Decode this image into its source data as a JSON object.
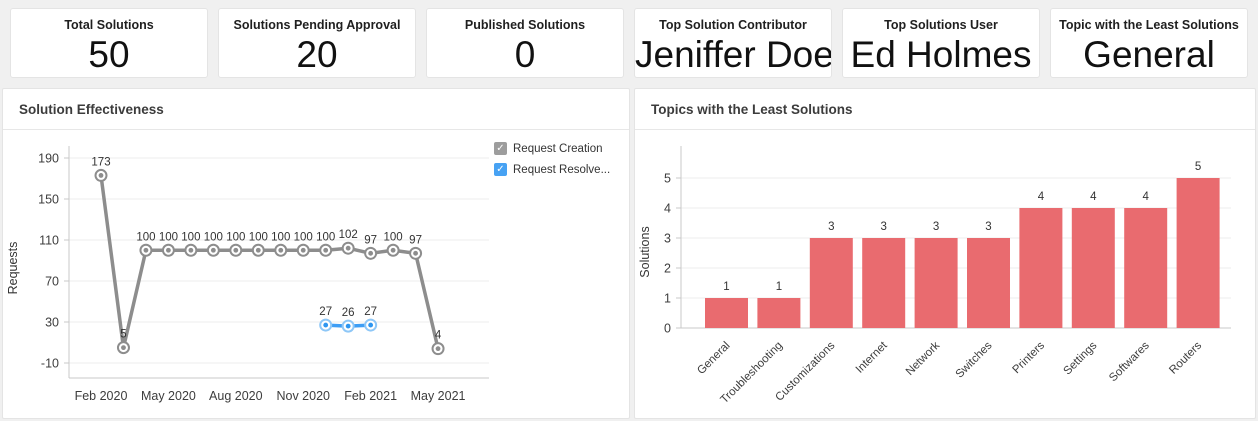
{
  "cards": [
    {
      "label": "Total Solutions",
      "value": "50"
    },
    {
      "label": "Solutions Pending Approval",
      "value": "20"
    },
    {
      "label": "Published Solutions",
      "value": "0"
    },
    {
      "label": "Top Solution Contributor",
      "value": "Jeniffer Doe"
    },
    {
      "label": "Top Solutions User",
      "value": "Ed Holmes"
    },
    {
      "label": "Topic with the Least Solutions",
      "value": "General"
    }
  ],
  "chart_data": [
    {
      "type": "line",
      "title": "Solution Effectiveness",
      "ylabel": "Requests",
      "yticks": [
        190,
        150,
        110,
        70,
        30,
        -10
      ],
      "ylim": [
        -10,
        190
      ],
      "grid": "horizontal",
      "x_tick_labels": [
        "Feb 2020",
        "May 2020",
        "Aug 2020",
        "Nov 2020",
        "Feb 2021",
        "May 2021"
      ],
      "x_tick_positions": [
        0,
        3,
        6,
        9,
        12,
        15
      ],
      "legend_position": "top-right",
      "series": [
        {
          "name": "Request Creation",
          "color": "#8d8d8d",
          "checkbox_color": "#9d9d9d",
          "marker": {
            "ring": "#8d8d8d",
            "dot": "#8d8d8d"
          },
          "x": [
            0,
            1,
            2,
            3,
            4,
            5,
            6,
            7,
            8,
            9,
            10,
            11,
            12,
            13,
            14,
            15
          ],
          "values": [
            173,
            5,
            100,
            100,
            100,
            100,
            100,
            100,
            100,
            100,
            100,
            102,
            97,
            100,
            97,
            4
          ]
        },
        {
          "name": "Request Resolve...",
          "color": "#3e9ef5",
          "checkbox_color": "#47a2f3",
          "marker": {
            "ring": "#8ec7f7",
            "dot": "#2e96f0"
          },
          "x": [
            10,
            11,
            12
          ],
          "values": [
            27,
            26,
            27
          ]
        }
      ]
    },
    {
      "type": "bar",
      "title": "Topics with the Least Solutions",
      "ylabel": "Solutions",
      "yticks": [
        0,
        1,
        2,
        3,
        4,
        5
      ],
      "ylim": [
        0,
        5
      ],
      "grid": "horizontal",
      "bar_color": "#e96b6f",
      "categories": [
        "General",
        "Troubleshooting",
        "Customizations",
        "Internet",
        "Network",
        "Switches",
        "Printers",
        "Settings",
        "Softwares",
        "Routers"
      ],
      "values": [
        1,
        1,
        3,
        3,
        3,
        3,
        4,
        4,
        4,
        5
      ]
    }
  ]
}
